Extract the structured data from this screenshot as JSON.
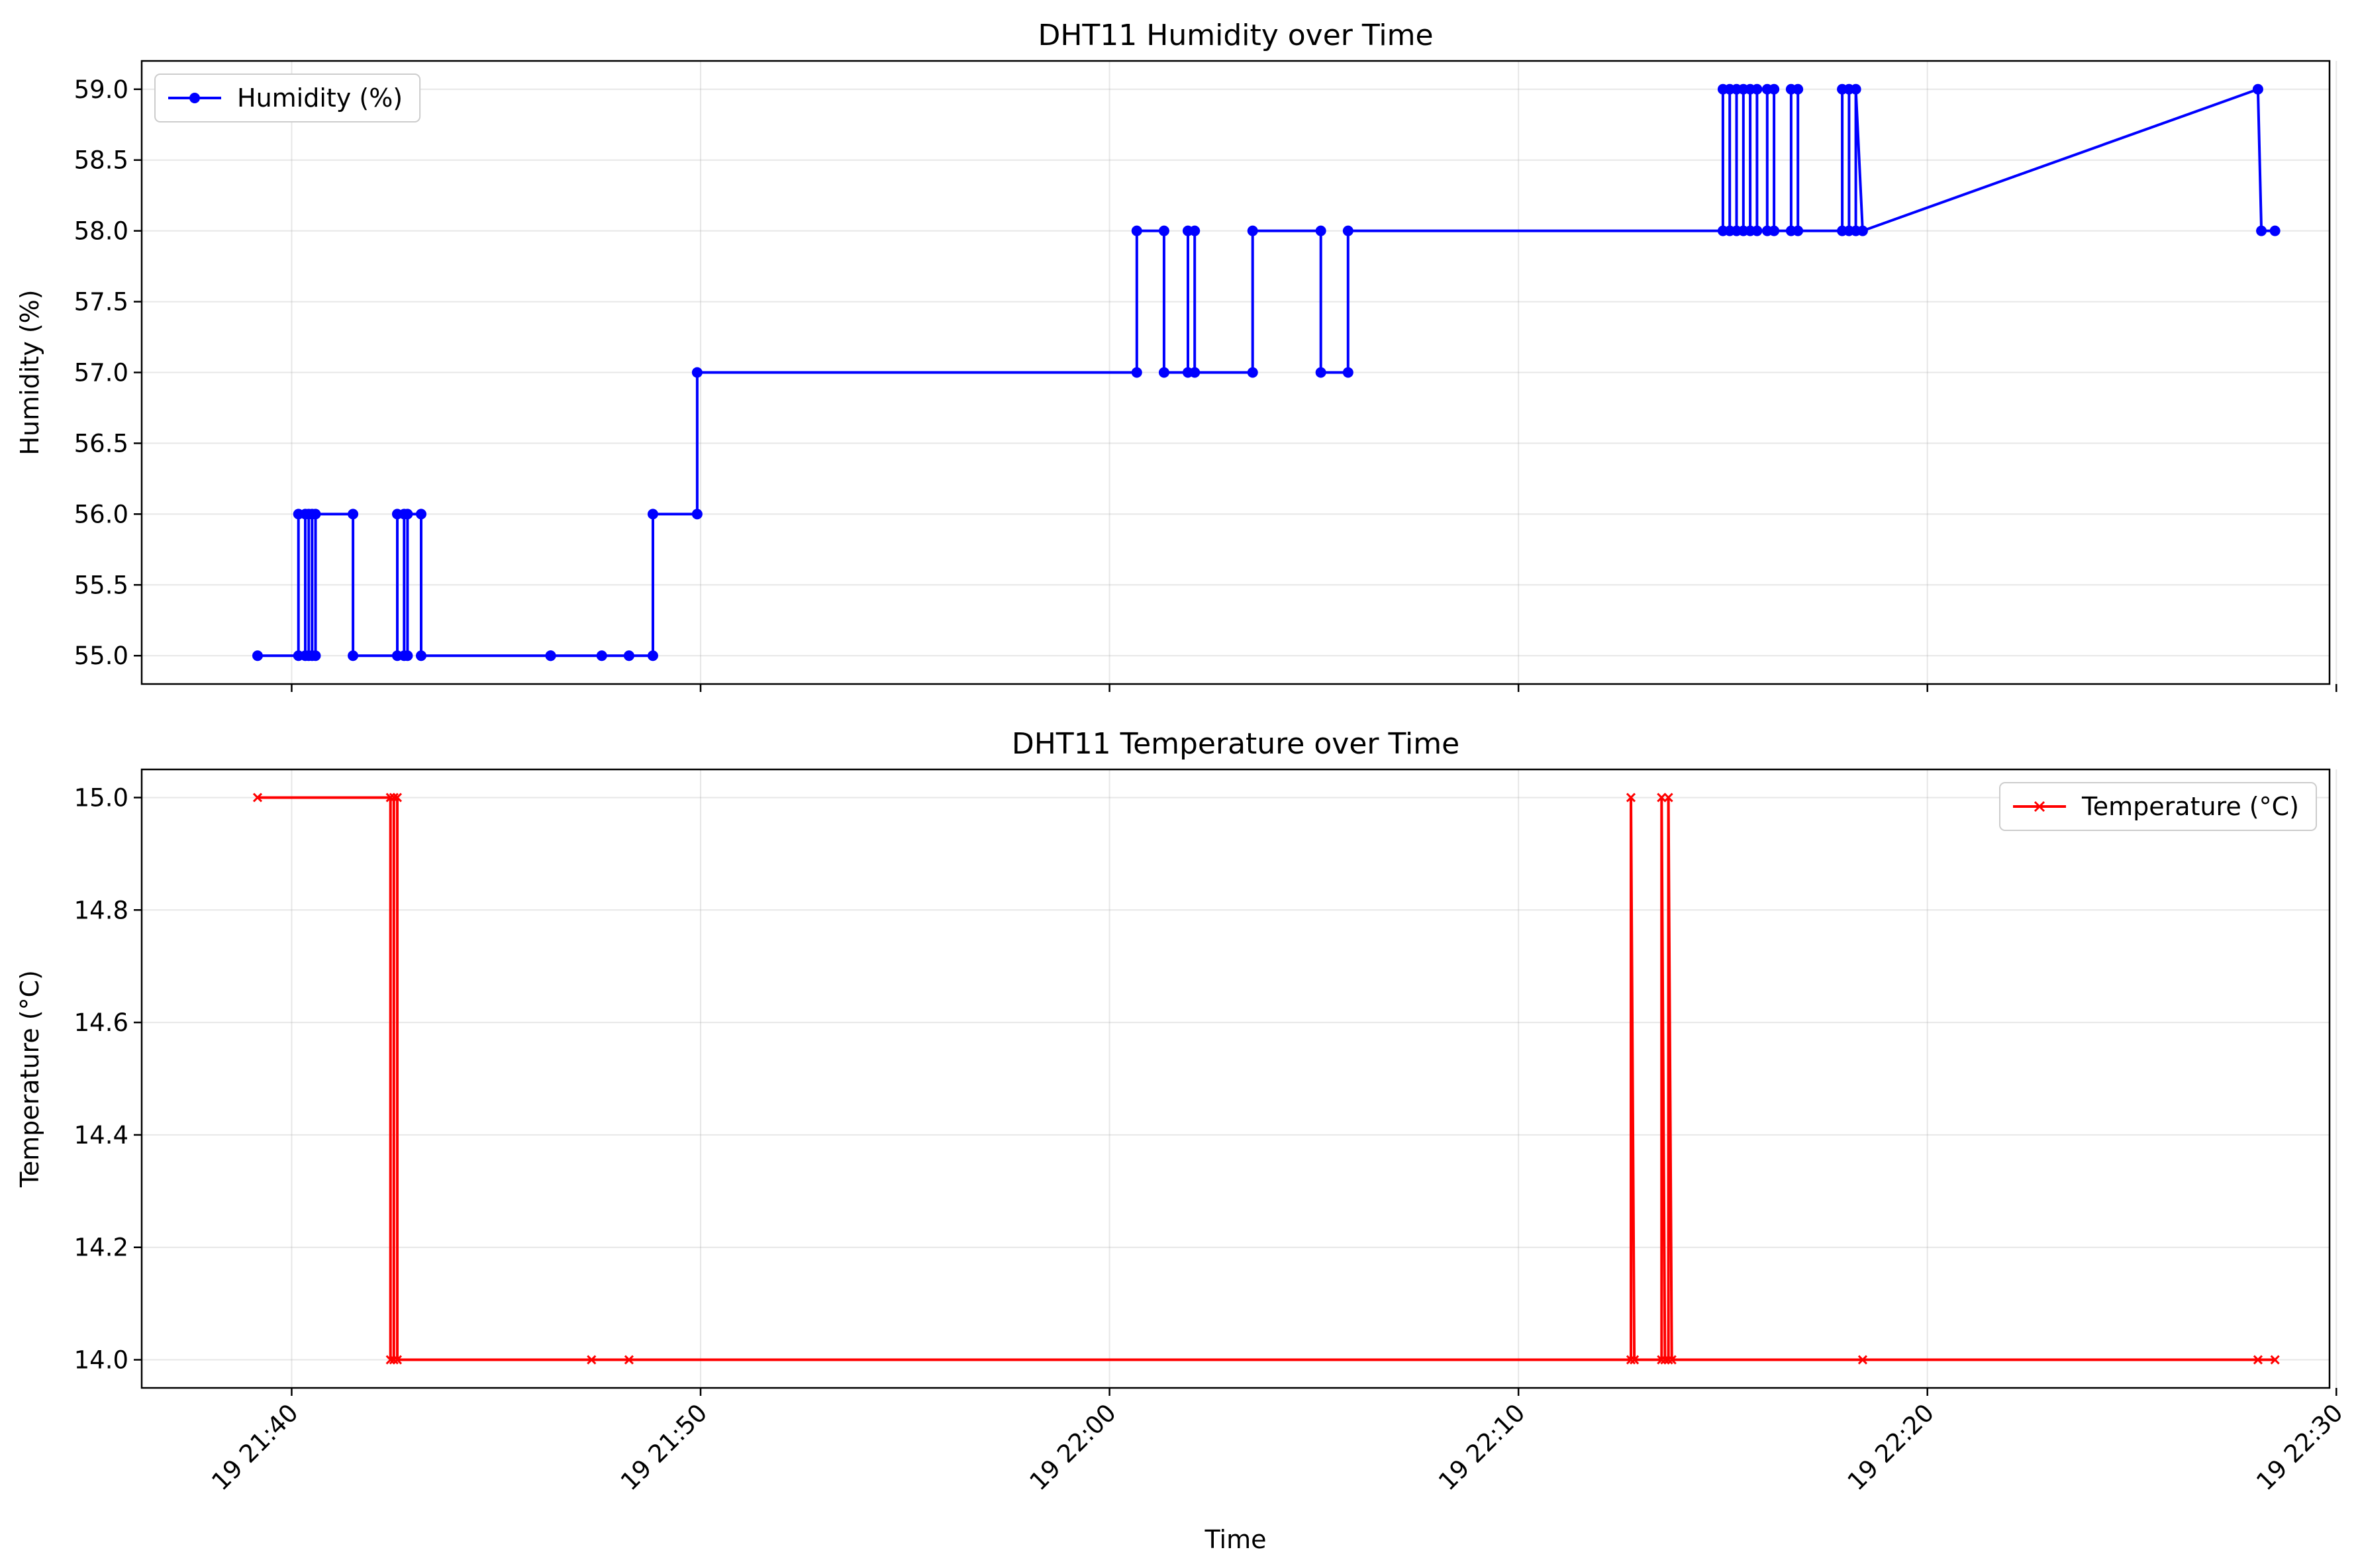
{
  "chart_data": [
    {
      "type": "line",
      "title": "DHT11 Humidity over Time",
      "xlabel": "",
      "ylabel": "Humidity (%)",
      "x_range": [
        "19 21:36:20",
        "19 22:29:50"
      ],
      "ylim": [
        54.8,
        59.2
      ],
      "y_ticks": [
        "55.0",
        "55.5",
        "56.0",
        "56.5",
        "57.0",
        "57.5",
        "58.0",
        "58.5",
        "59.0"
      ],
      "y_tick_values": [
        55.0,
        55.5,
        56.0,
        56.5,
        57.0,
        57.5,
        58.0,
        58.5,
        59.0
      ],
      "x_ticks": [
        "19 21:40",
        "19 21:50",
        "19 22:00",
        "19 22:10",
        "19 22:20",
        "19 22:30"
      ],
      "x_tick_values": [
        "19 21:40:00",
        "19 21:50:00",
        "19 22:00:00",
        "19 22:10:00",
        "19 22:20:00",
        "19 22:30:00"
      ],
      "x_tick_labels_visible": false,
      "grid": true,
      "legend": "top-left",
      "series": [
        {
          "name": "Humidity (%)",
          "color": "#0000ff",
          "marker": "circle",
          "x": [
            "19 21:39:10",
            "19 21:40:10",
            "19 21:40:10",
            "19 21:40:20",
            "19 21:40:20",
            "19 21:40:25",
            "19 21:40:25",
            "19 21:40:30",
            "19 21:40:30",
            "19 21:40:35",
            "19 21:40:35",
            "19 21:41:30",
            "19 21:41:30",
            "19 21:42:35",
            "19 21:42:35",
            "19 21:42:45",
            "19 21:42:45",
            "19 21:42:50",
            "19 21:42:50",
            "19 21:43:10",
            "19 21:43:10",
            "19 21:46:20",
            "19 21:46:20",
            "19 21:47:35",
            "19 21:48:15",
            "19 21:48:50",
            "19 21:48:50",
            "19 21:49:55",
            "19 21:49:55",
            "19 22:00:40",
            "19 22:00:40",
            "19 22:01:20",
            "19 22:01:20",
            "19 22:01:55",
            "19 22:01:55",
            "19 22:02:05",
            "19 22:02:05",
            "19 22:03:30",
            "19 22:03:30",
            "19 22:05:10",
            "19 22:05:10",
            "19 22:05:50",
            "19 22:05:50",
            "19 22:15:00",
            "19 22:15:00",
            "19 22:15:10",
            "19 22:15:10",
            "19 22:15:20",
            "19 22:15:20",
            "19 22:15:30",
            "19 22:15:30",
            "19 22:15:40",
            "19 22:15:40",
            "19 22:15:50",
            "19 22:15:50",
            "19 22:16:05",
            "19 22:16:05",
            "19 22:16:15",
            "19 22:16:15",
            "19 22:16:40",
            "19 22:16:40",
            "19 22:16:50",
            "19 22:16:50",
            "19 22:17:55",
            "19 22:17:55",
            "19 22:18:05",
            "19 22:18:05",
            "19 22:18:15",
            "19 22:18:15",
            "19 22:18:25",
            "19 22:28:05",
            "19 22:28:10",
            "19 22:28:30"
          ],
          "y": [
            55,
            55,
            56,
            56,
            55,
            55,
            56,
            56,
            55,
            55,
            56,
            56,
            55,
            55,
            56,
            56,
            55,
            55,
            56,
            56,
            55,
            55,
            55,
            55,
            55,
            55,
            56,
            56,
            57,
            57,
            58,
            58,
            57,
            57,
            58,
            58,
            57,
            57,
            58,
            58,
            57,
            57,
            58,
            58,
            59,
            59,
            58,
            58,
            59,
            59,
            58,
            58,
            59,
            59,
            58,
            58,
            59,
            59,
            58,
            58,
            59,
            59,
            58,
            58,
            59,
            59,
            58,
            58,
            59,
            58,
            59,
            58,
            58
          ]
        }
      ]
    },
    {
      "type": "line",
      "title": "DHT11 Temperature over Time",
      "xlabel": "Time",
      "ylabel": "Temperature (°C)",
      "x_range": [
        "19 21:36:20",
        "19 22:29:50"
      ],
      "ylim": [
        13.95,
        15.05
      ],
      "y_ticks": [
        "14.0",
        "14.2",
        "14.4",
        "14.6",
        "14.8",
        "15.0"
      ],
      "y_tick_values": [
        14.0,
        14.2,
        14.4,
        14.6,
        14.8,
        15.0
      ],
      "x_ticks": [
        "19 21:40",
        "19 21:50",
        "19 22:00",
        "19 22:10",
        "19 22:20",
        "19 22:30"
      ],
      "x_tick_values": [
        "19 21:40:00",
        "19 21:50:00",
        "19 22:00:00",
        "19 22:10:00",
        "19 22:20:00",
        "19 22:30:00"
      ],
      "x_tick_labels_visible": true,
      "grid": true,
      "legend": "top-right",
      "series": [
        {
          "name": "Temperature (°C)",
          "color": "#ff0000",
          "marker": "x",
          "x": [
            "19 21:39:10",
            "19 21:42:25",
            "19 21:42:25",
            "19 21:42:30",
            "19 21:42:30",
            "19 21:42:35",
            "19 21:42:35",
            "19 21:47:20",
            "19 21:48:15",
            "19 22:12:45",
            "19 22:12:45",
            "19 22:12:50",
            "19 22:13:30",
            "19 22:13:30",
            "19 22:13:35",
            "19 22:13:40",
            "19 22:13:40",
            "19 22:13:45",
            "19 22:18:25",
            "19 22:28:05",
            "19 22:28:30"
          ],
          "y": [
            15,
            15,
            14,
            14,
            15,
            15,
            14,
            14,
            14,
            14,
            15,
            14,
            14,
            15,
            14,
            14,
            15,
            14,
            14,
            14,
            14
          ]
        }
      ]
    }
  ]
}
